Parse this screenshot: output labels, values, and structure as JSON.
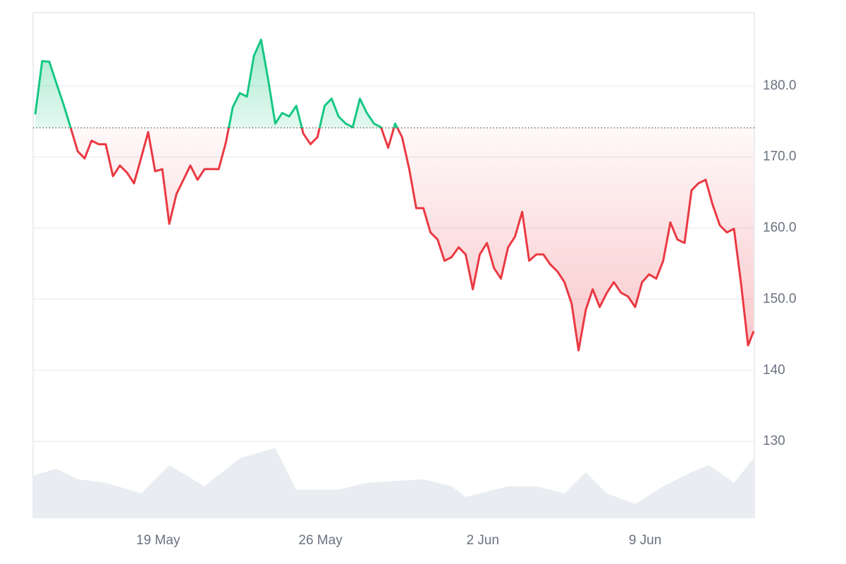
{
  "chart_data": {
    "type": "line",
    "xlim": [
      0,
      31.1
    ],
    "xticks": [
      {
        "value": 5.39,
        "label": "19 May"
      },
      {
        "value": 12.39,
        "label": "26 May"
      },
      {
        "value": 19.39,
        "label": "2 Jun"
      },
      {
        "value": 26.39,
        "label": "9 Jun"
      }
    ],
    "ylim": [
      119.2,
      190.3
    ],
    "yticks": [
      130,
      140,
      {
        "value": 150,
        "label": "150.0"
      },
      {
        "value": 160,
        "label": "160.0"
      },
      {
        "value": 170,
        "label": "170.0"
      },
      {
        "value": 180,
        "label": "180.0"
      }
    ],
    "y2lim": [
      0,
      100
    ],
    "grid": true,
    "reference_line": 174.1,
    "up_color": "#16c784",
    "down_color": "#ea3943",
    "series": [
      {
        "x": [
          0.09,
          0.39,
          0.7,
          1.0,
          1.31,
          1.61,
          1.92,
          2.22,
          2.52,
          2.83,
          3.13,
          3.44,
          3.74,
          4.05,
          4.35,
          4.65,
          4.96,
          5.26,
          5.57,
          5.87,
          6.18,
          6.48,
          6.78,
          7.09,
          7.39,
          7.7,
          8.0,
          8.31,
          8.61,
          8.91,
          9.22,
          9.52,
          9.83,
          10.13,
          10.44,
          10.74,
          11.04,
          11.35,
          11.65,
          11.96,
          12.26,
          12.57,
          12.87,
          13.17,
          13.48,
          13.78,
          14.09,
          14.39,
          14.7,
          15.0,
          15.31,
          15.61,
          15.91,
          16.22,
          16.52,
          16.83,
          17.13,
          17.44,
          17.74,
          18.04,
          18.35,
          18.65,
          18.96,
          19.26,
          19.57,
          19.87,
          20.17,
          20.48,
          20.78,
          21.09,
          21.39,
          21.7,
          22.0,
          22.3,
          22.61,
          22.91,
          23.22,
          23.52,
          23.83,
          24.13,
          24.43,
          24.74,
          25.04,
          25.35,
          25.65,
          25.96,
          26.26,
          26.56,
          26.87,
          27.17,
          27.48,
          27.78,
          28.09,
          28.39,
          28.69,
          29.0,
          29.3,
          29.61,
          29.91,
          30.22,
          30.52,
          30.83,
          31.07
        ],
        "values": [
          176.0,
          183.5,
          183.4,
          180.4,
          177.4,
          174.2,
          170.8,
          169.8,
          172.3,
          171.8,
          171.8,
          167.3,
          168.8,
          167.8,
          166.3,
          169.8,
          173.5,
          168.0,
          168.3,
          160.6,
          164.8,
          166.8,
          168.8,
          166.8,
          168.3,
          168.3,
          168.3,
          172.0,
          177.0,
          179.0,
          178.5,
          184.2,
          186.5,
          181.0,
          174.7,
          176.2,
          175.7,
          177.2,
          173.3,
          171.8,
          172.8,
          177.2,
          178.2,
          175.7,
          174.7,
          174.2,
          178.2,
          176.2,
          174.7,
          174.2,
          171.3,
          174.7,
          172.8,
          168.3,
          162.8,
          162.8,
          159.4,
          158.4,
          155.4,
          155.9,
          157.3,
          156.3,
          151.4,
          156.3,
          157.9,
          154.4,
          152.9,
          157.3,
          158.8,
          162.3,
          155.4,
          156.3,
          156.3,
          154.9,
          153.9,
          152.4,
          149.4,
          142.8,
          148.5,
          151.4,
          148.9,
          150.9,
          152.4,
          150.9,
          150.4,
          148.9,
          152.4,
          153.5,
          152.9,
          155.4,
          160.8,
          158.4,
          157.9,
          165.3,
          166.3,
          166.8,
          163.3,
          160.4,
          159.4,
          159.9,
          152.4,
          143.5,
          145.5
        ]
      },
      {
        "axis": "y2",
        "color": "#e9edf2",
        "x": [
          0,
          1.0,
          1.92,
          3.13,
          4.66,
          5.87,
          7.39,
          8.92,
          10.44,
          11.35,
          13.17,
          14.39,
          16.83,
          18.05,
          18.65,
          20.48,
          21.7,
          22.91,
          23.83,
          24.74,
          25.96,
          27.17,
          28.39,
          29.15,
          30.22,
          31.07
        ],
        "values": [
          8.4,
          9.8,
          7.7,
          7.0,
          4.9,
          10.5,
          6.3,
          11.9,
          13.9,
          5.6,
          5.6,
          7.0,
          7.7,
          6.3,
          4.2,
          6.3,
          6.3,
          4.9,
          9.1,
          4.9,
          2.8,
          6.3,
          9.1,
          10.5,
          7.0,
          11.9
        ]
      }
    ]
  }
}
